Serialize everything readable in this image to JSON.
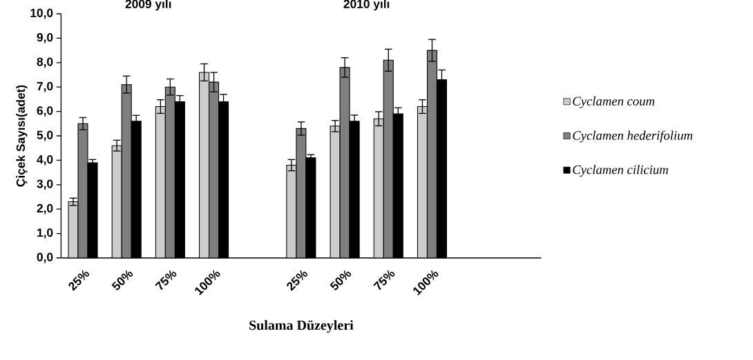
{
  "chart_data": {
    "type": "bar",
    "ylabel": "Çiçek Sayısı(adet)",
    "xlabel": "Sulama Düzeyleri",
    "annotations": [
      "2009 yılı",
      "2010 yılı"
    ],
    "categories": [
      "25%",
      "50%",
      "75%",
      "100%",
      null,
      "25%",
      "50%",
      "75%",
      "100%",
      null,
      null
    ],
    "series": [
      {
        "name": "Cyclamen coum",
        "color": "#cccccc",
        "values": [
          2.3,
          4.6,
          6.2,
          7.6,
          null,
          3.8,
          5.4,
          5.7,
          6.2,
          null,
          null
        ],
        "errors": [
          0.15,
          0.22,
          0.28,
          0.35,
          null,
          0.23,
          0.23,
          0.29,
          0.28,
          null,
          null
        ]
      },
      {
        "name": "Cyclamen hederifolium",
        "color": "#7f7f7f",
        "values": [
          5.5,
          7.1,
          7.0,
          7.2,
          null,
          5.3,
          7.8,
          8.1,
          8.5,
          null,
          null
        ],
        "errors": [
          0.25,
          0.35,
          0.33,
          0.4,
          null,
          0.27,
          0.4,
          0.45,
          0.45,
          null,
          null
        ]
      },
      {
        "name": "Cyclamen cilicium",
        "color": "#000000",
        "values": [
          3.9,
          5.6,
          6.4,
          6.4,
          null,
          4.1,
          5.6,
          5.9,
          7.3,
          null,
          null
        ],
        "errors": [
          0.13,
          0.24,
          0.25,
          0.3,
          null,
          0.13,
          0.25,
          0.25,
          0.4,
          null,
          null
        ]
      }
    ],
    "ylim": [
      0,
      10
    ],
    "yticks": [
      {
        "value": 0,
        "label": "0,0"
      },
      {
        "value": 1,
        "label": "1,0"
      },
      {
        "value": 2,
        "label": "2,0"
      },
      {
        "value": 3,
        "label": "3,0"
      },
      {
        "value": 4,
        "label": "4,0"
      },
      {
        "value": 5,
        "label": "5,0"
      },
      {
        "value": 6,
        "label": "6,0"
      },
      {
        "value": 7,
        "label": "7,0"
      },
      {
        "value": 8,
        "label": "8,0"
      },
      {
        "value": 9,
        "label": "9,0"
      },
      {
        "value": 10,
        "label": "10,0"
      }
    ],
    "legend": "right"
  }
}
